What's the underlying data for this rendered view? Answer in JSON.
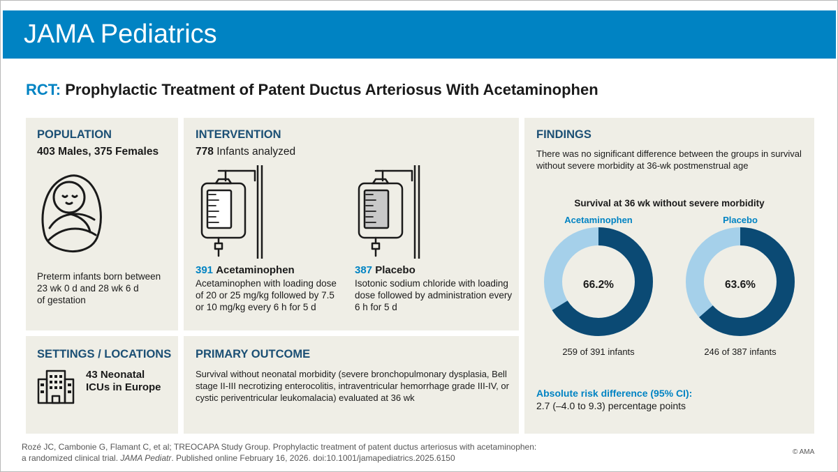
{
  "header": {
    "brand": "JAMA Pediatrics"
  },
  "title": {
    "kind": "RCT:",
    "text": "Prophylactic Treatment of Patent Ductus Arteriosus With Acetaminophen"
  },
  "population": {
    "heading": "POPULATION",
    "counts": "403 Males, 375 Females",
    "icon": "swaddled-infant-icon",
    "desc_lines": [
      "Preterm infants born between",
      "23 wk 0 d and 28 wk 6 d",
      "of gestation"
    ]
  },
  "intervention": {
    "heading": "INTERVENTION",
    "count": "778",
    "count_label": "Infants analyzed",
    "arms": [
      {
        "n": "391",
        "name": "Acetaminophen",
        "icon": "iv-bag-icon",
        "desc_lines": [
          "Acetaminophen with loading dose",
          "of 20 or 25 mg/kg followed by 7.5",
          "or 10 mg/kg every 6 h for 5 d"
        ]
      },
      {
        "n": "387",
        "name": "Placebo",
        "icon": "iv-bag-icon",
        "desc_lines": [
          "Isotonic sodium chloride with loading",
          "dose followed by administration every",
          "6 h for 5 d"
        ]
      }
    ]
  },
  "settings": {
    "heading": "SETTINGS / LOCATIONS",
    "icon": "hospital-building-icon",
    "lines": [
      "43 Neonatal",
      "ICUs in Europe"
    ]
  },
  "primary_outcome": {
    "heading": "PRIMARY OUTCOME",
    "lines": [
      "Survival without neonatal morbidity (severe bronchopulmonary dysplasia, Bell",
      "stage II-III necrotizing enterocolitis, intraventricular hemorrhage grade III-IV, or",
      "cystic periventricular leukomalacia) evaluated at 36 wk"
    ]
  },
  "findings": {
    "heading": "FINDINGS",
    "summary_lines": [
      "There was no significant difference between the groups in survival",
      "without severe morbidity at 36-wk postmenstrual age"
    ],
    "risk_label": "Absolute risk difference (95% CI):",
    "risk_value": "2.7 (–4.0 to 9.3) percentage points"
  },
  "chart_data": {
    "type": "pie",
    "title": "Survival at 36 wk without severe morbidity",
    "colors": {
      "survived": "#0b4a74",
      "remainder": "#a5d0ea"
    },
    "series": [
      {
        "name": "Acetaminophen",
        "percent": 66.2,
        "label": "66.2%",
        "caption": "259 of 391 infants"
      },
      {
        "name": "Placebo",
        "percent": 63.6,
        "label": "63.6%",
        "caption": "246 of 387 infants"
      }
    ]
  },
  "citation": {
    "line1": "Rozé JC, Cambonie G, Flamant C, et al; TREOCAPA Study Group. Prophylactic treatment of patent ductus arteriosus with acetaminophen:",
    "line2_pre": "a randomized clinical trial. ",
    "journal": "JAMA Pediatr",
    "line2_post": ". Published online February 16, 2026. doi:10.1001/jamapediatrics.2025.6150"
  },
  "copyright": "© AMA"
}
